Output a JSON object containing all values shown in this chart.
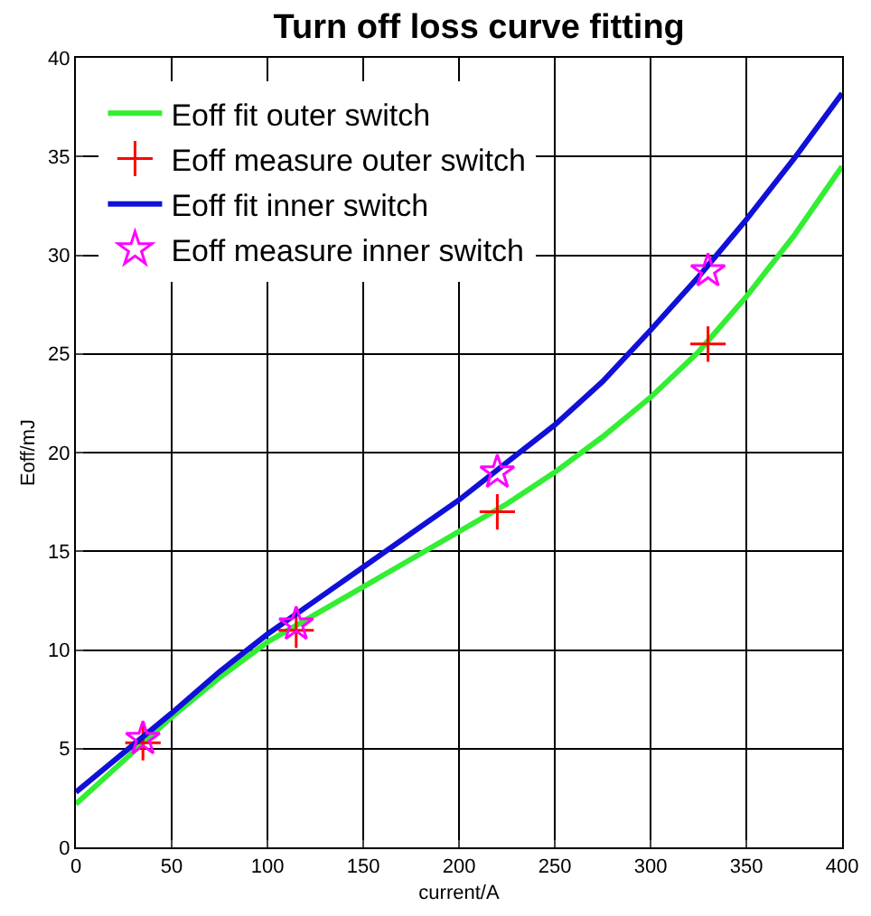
{
  "chart_data": {
    "type": "line",
    "title": "Turn off loss curve fitting",
    "xlabel": "current/A",
    "ylabel": "Eoff/mJ",
    "xlim": [
      0,
      400
    ],
    "xticks": [
      0,
      50,
      100,
      150,
      200,
      250,
      300,
      350,
      400
    ],
    "ylim": [
      0,
      40
    ],
    "yticks": [
      0,
      5,
      10,
      15,
      20,
      25,
      30,
      35,
      40
    ],
    "grid": true,
    "legend": "top left",
    "series": [
      {
        "name": "Eoff fit outer switch",
        "type": "line",
        "color": "#33ee33",
        "marker": "none",
        "x": [
          0,
          25,
          50,
          75,
          100,
          125,
          150,
          175,
          200,
          225,
          250,
          275,
          300,
          325,
          350,
          375,
          400
        ],
        "values": [
          2.2,
          4.4,
          6.6,
          8.6,
          10.4,
          11.8,
          13.2,
          14.6,
          16,
          17.4,
          19,
          20.8,
          22.8,
          25.1,
          27.9,
          31,
          34.5
        ]
      },
      {
        "name": "Eoff measure outer switch",
        "type": "scatter",
        "color": "#ff0000",
        "marker": "cross",
        "x": [
          35,
          115,
          220,
          330
        ],
        "values": [
          5.3,
          11,
          17,
          25.5
        ]
      },
      {
        "name": "Eoff fit inner switch",
        "type": "line",
        "color": "#1010d8",
        "marker": "none",
        "x": [
          0,
          25,
          50,
          75,
          100,
          125,
          150,
          175,
          200,
          225,
          250,
          275,
          300,
          325,
          350,
          375,
          400
        ],
        "values": [
          2.8,
          4.8,
          6.8,
          8.9,
          10.8,
          12.5,
          14.2,
          15.9,
          17.6,
          19.5,
          21.4,
          23.6,
          26.2,
          28.9,
          31.8,
          34.9,
          38.2
        ]
      },
      {
        "name": "Eoff measure inner switch",
        "type": "scatter",
        "color": "#ff00ff",
        "marker": "star",
        "x": [
          35,
          115,
          220,
          330
        ],
        "values": [
          5.5,
          11.3,
          19,
          29.2
        ]
      }
    ]
  }
}
